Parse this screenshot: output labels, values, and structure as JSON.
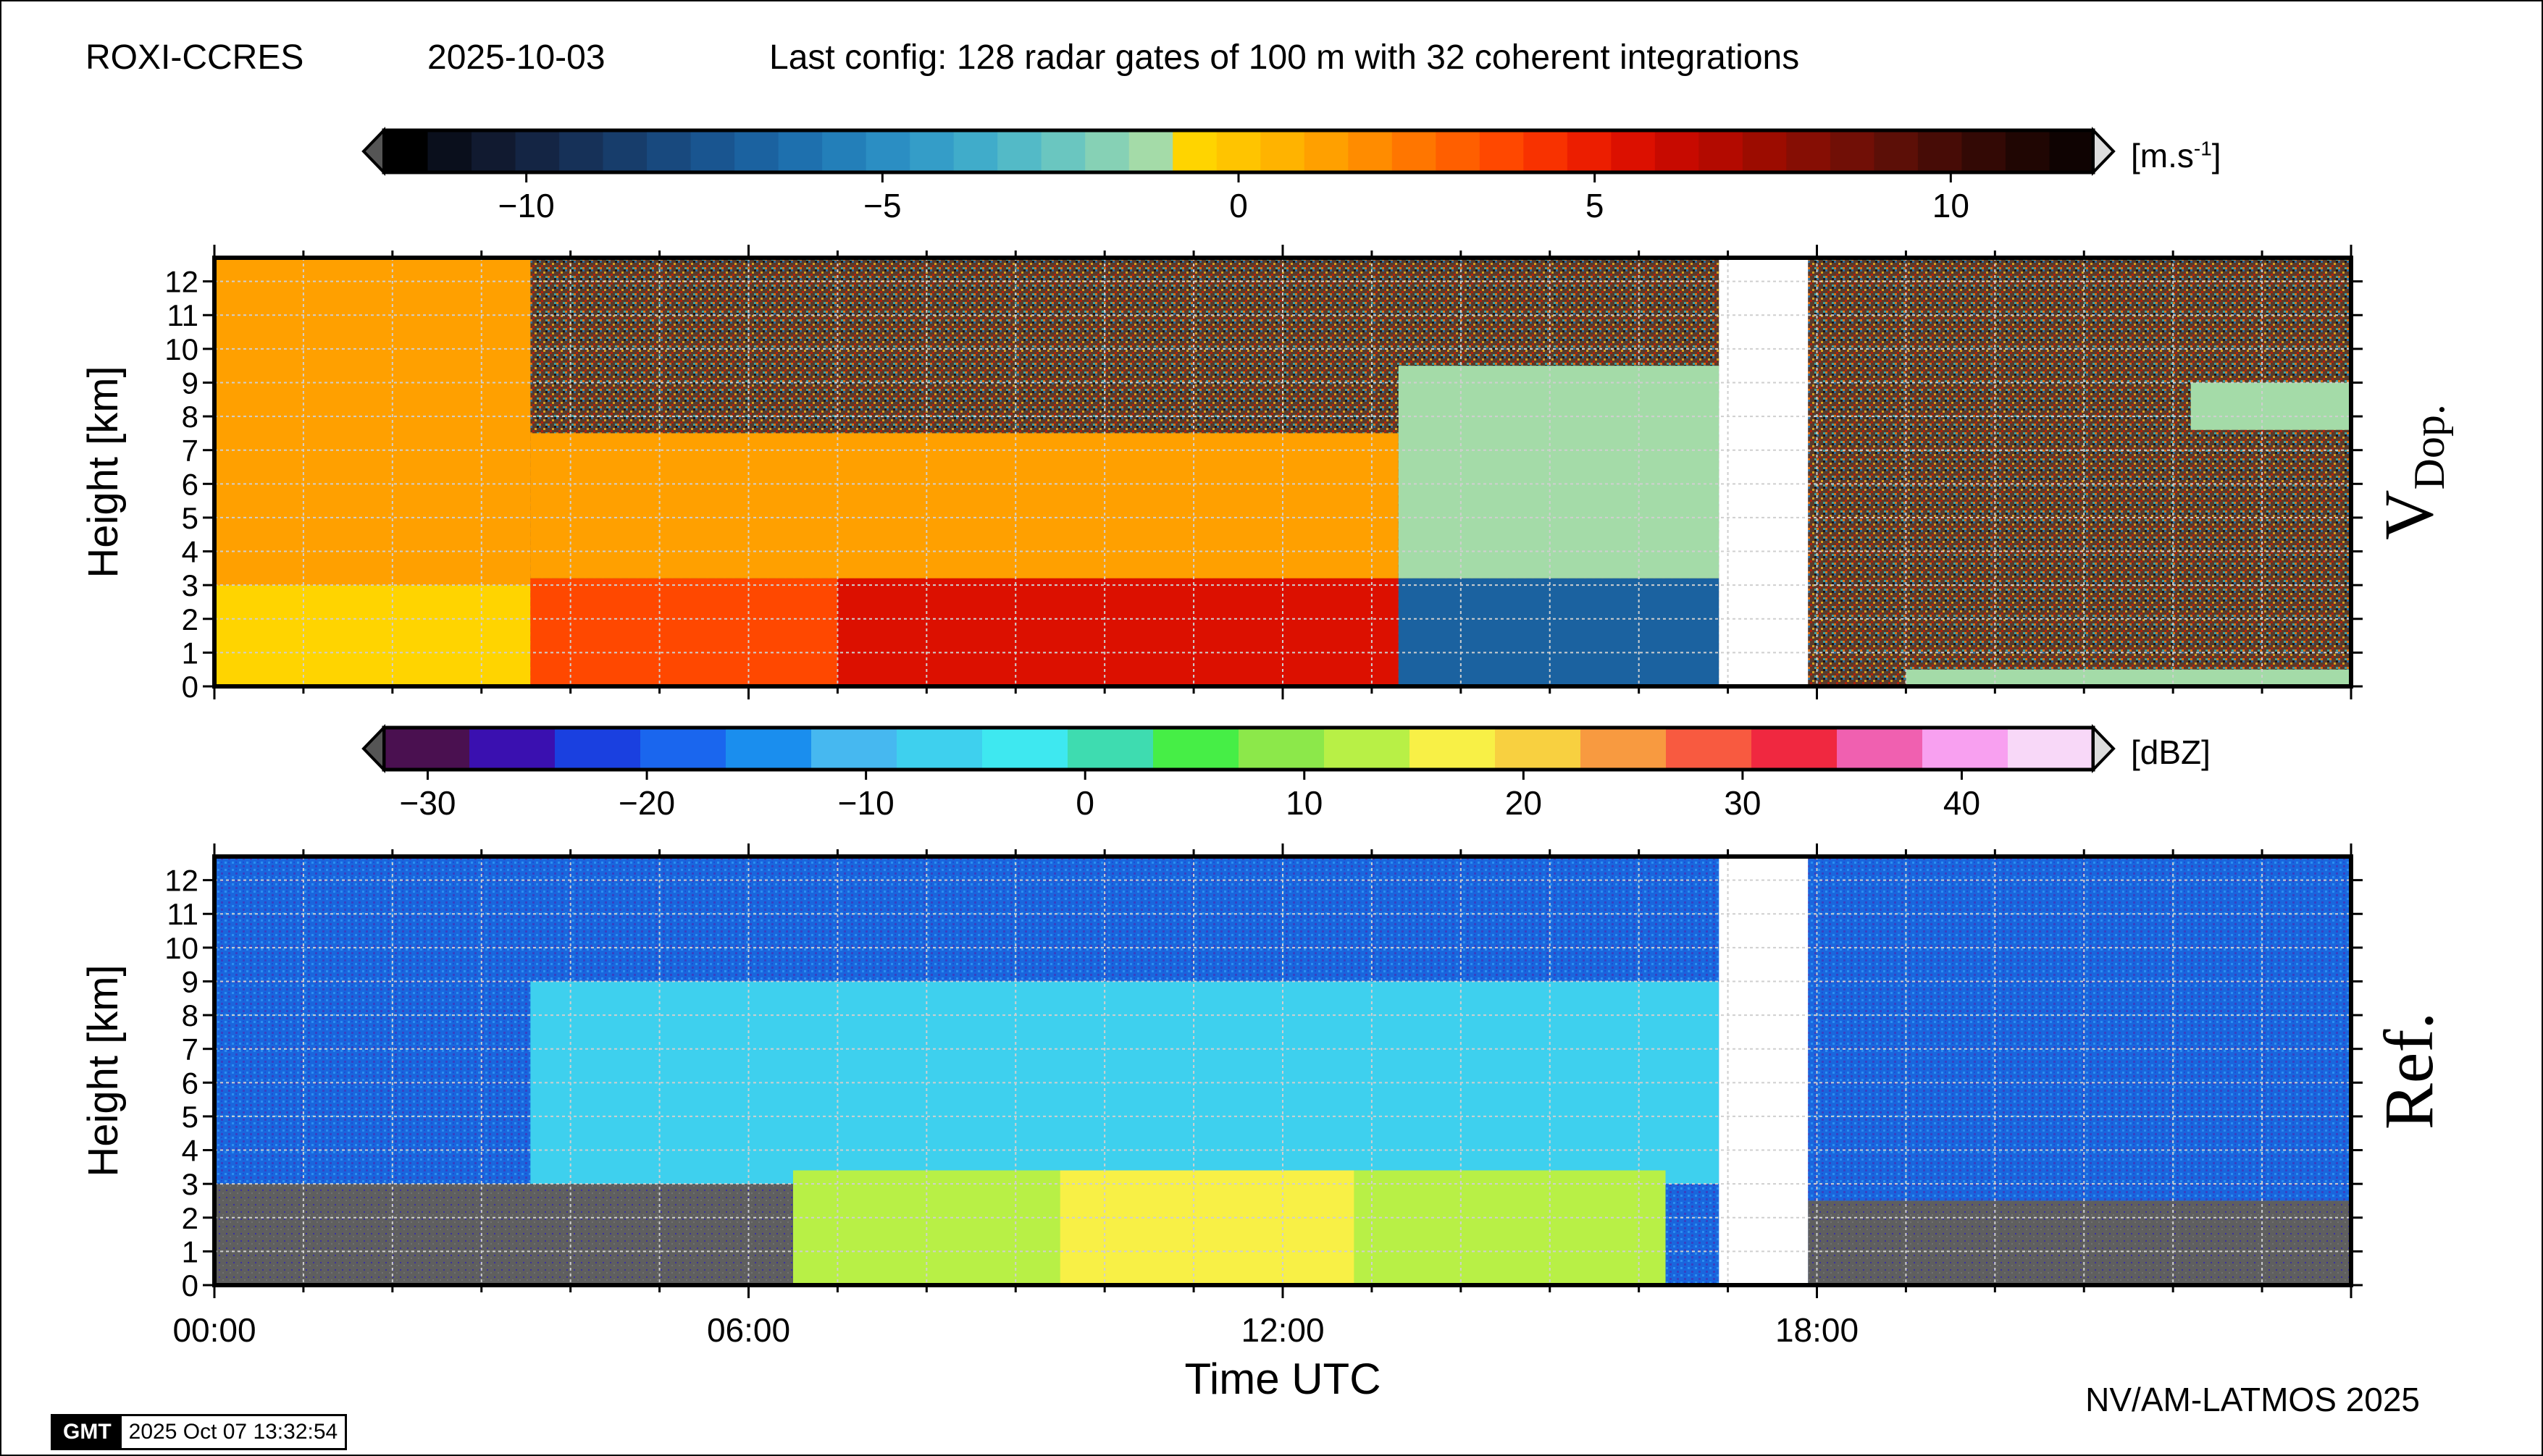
{
  "header": {
    "station": "ROXI-CCRES",
    "date": "2025-10-03",
    "config": "Last config: 128 radar gates of 100 m with 32 coherent integrations"
  },
  "footer": {
    "credit": "NV/AM-LATMOS 2025",
    "stamp_logo": "GMT",
    "stamp_time": "2025 Oct 07 13:32:54"
  },
  "chart_data": [
    {
      "type": "heatmap",
      "panel_label": "V",
      "panel_label_sub": "Dop.",
      "ylabel": "Height [km]",
      "ylim": [
        0,
        12.7
      ],
      "yticks": [
        0,
        1,
        2,
        3,
        4,
        5,
        6,
        7,
        8,
        9,
        10,
        11,
        12
      ],
      "xlim_hours": [
        0,
        24
      ],
      "grid": true,
      "data_gap_hours": [
        16.9,
        17.9
      ],
      "colorbar": {
        "unit": "[m.s",
        "unit_sup": "-1",
        "unit_end": "]",
        "range": [
          -12,
          12
        ],
        "ticks": [
          "−10",
          "−5",
          "0",
          "5",
          "10"
        ],
        "tick_values": [
          -10,
          -5,
          0,
          5,
          10
        ],
        "colors": [
          "#000000",
          "#0a0f1c",
          "#111a30",
          "#142544",
          "#163158",
          "#173d6b",
          "#18497e",
          "#195590",
          "#1b62a0",
          "#1e70ae",
          "#237fb9",
          "#2b8ec3",
          "#349dc8",
          "#40acca",
          "#53bac7",
          "#6ac6c0",
          "#86d1b5",
          "#a4dba8",
          "#ffd400",
          "#ffc400",
          "#ffb300",
          "#ffa000",
          "#ff8c00",
          "#ff7600",
          "#ff5f00",
          "#ff4800",
          "#f83200",
          "#ec1e00",
          "#dc1000",
          "#c70a00",
          "#b30a00",
          "#9c0c00",
          "#860e04",
          "#710f06",
          "#5c0f07",
          "#470c06",
          "#330905",
          "#200603",
          "#0f0302"
        ]
      },
      "regions": [
        {
          "t": [
            0.0,
            3.55
          ],
          "z": [
            3.0,
            12.7
          ],
          "value": 1.0,
          "note": "light-yellow"
        },
        {
          "t": [
            0.0,
            3.55
          ],
          "z": [
            0.0,
            3.0
          ],
          "value": -0.5
        },
        {
          "t": [
            3.55,
            13.3
          ],
          "z": [
            3.2,
            7.5
          ],
          "value": 1.0
        },
        {
          "t": [
            3.55,
            13.3
          ],
          "z": [
            0.0,
            3.2
          ],
          "value": 3.5
        },
        {
          "t": [
            7.0,
            13.3
          ],
          "z": [
            0.0,
            3.2
          ],
          "value": 5.5
        },
        {
          "t": [
            13.3,
            16.9
          ],
          "z": [
            3.2,
            9.5
          ],
          "value": -1.0
        },
        {
          "t": [
            13.3,
            16.9
          ],
          "z": [
            0.0,
            3.2
          ],
          "value": -7.0
        },
        {
          "t": [
            19.0,
            24.0
          ],
          "z": [
            0.0,
            0.5
          ],
          "value": -1.0
        },
        {
          "t": [
            22.2,
            24.0
          ],
          "z": [
            7.6,
            9.0
          ],
          "value": -1.0
        }
      ]
    },
    {
      "type": "heatmap",
      "panel_label": "Ref.",
      "ylabel": "Height [km]",
      "xlabel": "Time UTC",
      "ylim": [
        0,
        12.7
      ],
      "yticks": [
        0,
        1,
        2,
        3,
        4,
        5,
        6,
        7,
        8,
        9,
        10,
        11,
        12
      ],
      "xticks": [
        "00:00",
        "06:00",
        "12:00",
        "18:00"
      ],
      "xtick_hours": [
        0,
        6,
        12,
        18
      ],
      "xlim_hours": [
        0,
        24
      ],
      "grid": true,
      "data_gap_hours": [
        16.9,
        17.9
      ],
      "colorbar": {
        "unit": "[dBZ]",
        "range": [
          -32,
          46
        ],
        "ticks": [
          "−30",
          "−20",
          "−10",
          "0",
          "10",
          "20",
          "30",
          "40"
        ],
        "tick_values": [
          -30,
          -20,
          -10,
          0,
          10,
          20,
          30,
          40
        ],
        "colors": [
          "#4a1050",
          "#3a10b0",
          "#1a40e0",
          "#1a66ee",
          "#1a8eee",
          "#46b8f0",
          "#3ed0ee",
          "#3ee8f0",
          "#3edcb0",
          "#46ee46",
          "#8ce84a",
          "#b8f046",
          "#f8f046",
          "#f8d040",
          "#f89a40",
          "#f85a40",
          "#f02840",
          "#f060b0",
          "#f8a0f0",
          "#f8d8f8"
        ]
      },
      "regions": [
        {
          "t": [
            0.0,
            24.0
          ],
          "z": [
            0.0,
            12.7
          ],
          "value": -20.0,
          "note": "blue background"
        },
        {
          "t": [
            3.55,
            16.9
          ],
          "z": [
            3.0,
            9.0
          ],
          "value": -5.0
        },
        {
          "t": [
            6.5,
            16.3
          ],
          "z": [
            0.0,
            3.4
          ],
          "value": 12.0
        },
        {
          "t": [
            9.5,
            12.8
          ],
          "z": [
            0.0,
            3.4
          ],
          "value": 18.0
        },
        {
          "t": [
            0.0,
            6.5
          ],
          "z": [
            0.0,
            3.0
          ],
          "value": null,
          "note": "grey no-signal"
        },
        {
          "t": [
            17.9,
            24.0
          ],
          "z": [
            0.0,
            2.5
          ],
          "value": null,
          "note": "grey no-signal"
        }
      ]
    }
  ]
}
